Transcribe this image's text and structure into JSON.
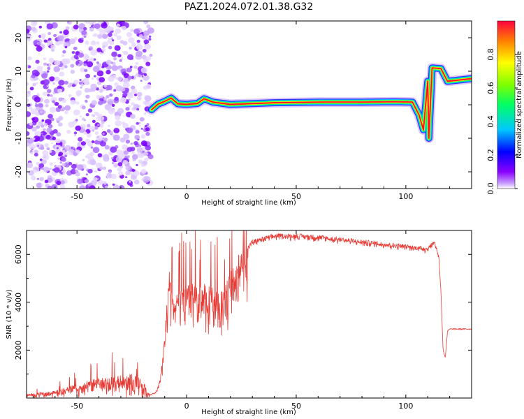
{
  "chart_data": [
    {
      "type": "heatmap",
      "title": "PAZ1.2024.072.01.38.G32",
      "xlabel": "Height of straight line (km)",
      "ylabel": "Frequency (Hz)",
      "xlim": [
        -73,
        130
      ],
      "ylim": [
        -25,
        25
      ],
      "xticks": [
        -50,
        0,
        50,
        100
      ],
      "yticks": [
        -20,
        -10,
        0,
        10,
        20
      ],
      "colorbar": {
        "label": "Normalized spectral amplitude",
        "range": [
          0,
          1
        ],
        "ticks": [
          "0.0",
          "0.2",
          "0.4",
          "0.6",
          "0.8"
        ],
        "colors": [
          "#ffffff",
          "#8a00ff",
          "#0000ff",
          "#00c8ff",
          "#00ff66",
          "#7fff00",
          "#ffff00",
          "#ff8000",
          "#ff0040"
        ]
      },
      "noise_region_km": [
        -73,
        -18
      ],
      "ridge": [
        {
          "h": -16,
          "f": -1.5
        },
        {
          "h": -13,
          "f": 0.2
        },
        {
          "h": -10,
          "f": 1.0
        },
        {
          "h": -7,
          "f": 2.0
        },
        {
          "h": -4,
          "f": 0.3
        },
        {
          "h": 0,
          "f": 0.1
        },
        {
          "h": 5,
          "f": 0.4
        },
        {
          "h": 8,
          "f": 1.8
        },
        {
          "h": 12,
          "f": 0.8
        },
        {
          "h": 20,
          "f": 0.1
        },
        {
          "h": 40,
          "f": 0.6
        },
        {
          "h": 60,
          "f": 0.8
        },
        {
          "h": 80,
          "f": 0.8
        },
        {
          "h": 95,
          "f": 0.9
        },
        {
          "h": 103,
          "f": 0.8
        },
        {
          "h": 106,
          "f": -3.0
        },
        {
          "h": 108,
          "f": -7.5
        },
        {
          "h": 110,
          "f": 7.0
        },
        {
          "h": 110.5,
          "f": -10.0
        },
        {
          "h": 112,
          "f": 11.0
        },
        {
          "h": 116,
          "f": 10.8
        },
        {
          "h": 119,
          "f": 7.0
        },
        {
          "h": 126,
          "f": 7.5
        },
        {
          "h": 130,
          "f": 7.8
        }
      ]
    },
    {
      "type": "line",
      "xlabel": "Height of straight line (km)",
      "ylabel": "SNR (10 * v/v)",
      "xlim": [
        -73,
        130
      ],
      "ylim": [
        0,
        7000
      ],
      "xticks": [
        -50,
        0,
        50,
        100
      ],
      "yticks": [
        2000,
        4000,
        6000
      ],
      "color": "#e83a34",
      "series": [
        {
          "values_envelope": [
            {
              "h": -73,
              "y": 150
            },
            {
              "h": -60,
              "y": 300
            },
            {
              "h": -50,
              "y": 550
            },
            {
              "h": -40,
              "y": 800
            },
            {
              "h": -30,
              "y": 900
            },
            {
              "h": -25,
              "y": 1000
            },
            {
              "h": -20,
              "y": 700
            },
            {
              "h": -17,
              "y": 150
            },
            {
              "h": -14,
              "y": 250
            },
            {
              "h": -12,
              "y": 800
            },
            {
              "h": -10,
              "y": 2500
            },
            {
              "h": -8,
              "y": 5200
            },
            {
              "h": -5,
              "y": 4200
            },
            {
              "h": 0,
              "y": 4700
            },
            {
              "h": 5,
              "y": 4600
            },
            {
              "h": 10,
              "y": 4600
            },
            {
              "h": 15,
              "y": 4200
            },
            {
              "h": 20,
              "y": 5100
            },
            {
              "h": 25,
              "y": 6000
            },
            {
              "h": 30,
              "y": 6600
            },
            {
              "h": 40,
              "y": 6850
            },
            {
              "h": 50,
              "y": 6850
            },
            {
              "h": 60,
              "y": 6800
            },
            {
              "h": 70,
              "y": 6700
            },
            {
              "h": 80,
              "y": 6600
            },
            {
              "h": 90,
              "y": 6500
            },
            {
              "h": 100,
              "y": 6400
            },
            {
              "h": 110,
              "y": 6300
            },
            {
              "h": 113,
              "y": 6600
            },
            {
              "h": 115,
              "y": 6000
            },
            {
              "h": 116,
              "y": 4500
            },
            {
              "h": 117,
              "y": 2000
            },
            {
              "h": 118,
              "y": 1700
            },
            {
              "h": 119,
              "y": 2800
            },
            {
              "h": 120,
              "y": 2900
            },
            {
              "h": 130,
              "y": 2900
            }
          ]
        }
      ]
    }
  ]
}
